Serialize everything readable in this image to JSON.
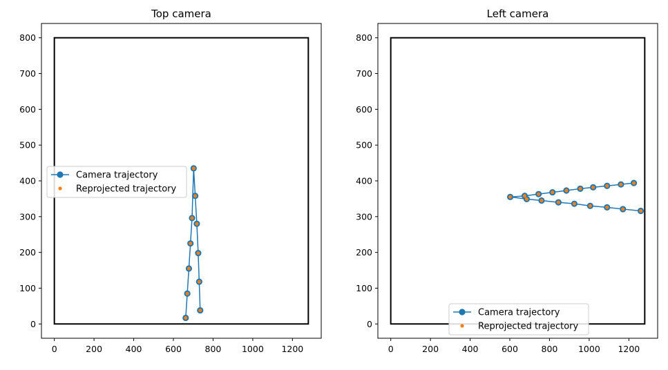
{
  "chart_data": [
    {
      "type": "line",
      "title": "Top camera",
      "xlim": [
        -65,
        1345
      ],
      "ylim": [
        -40,
        840
      ],
      "xticks": [
        "0",
        "200",
        "400",
        "600",
        "800",
        "1000",
        "1200"
      ],
      "xtick_values": [
        0,
        200,
        400,
        600,
        800,
        1000,
        1200
      ],
      "yticks": [
        "0",
        "100",
        "200",
        "300",
        "400",
        "500",
        "600",
        "700",
        "800"
      ],
      "ytick_values": [
        0,
        100,
        200,
        300,
        400,
        500,
        600,
        700,
        800
      ],
      "image_frame": {
        "x": [
          0,
          1280
        ],
        "y": [
          0,
          800
        ]
      },
      "legend_position": "center-left",
      "series": [
        {
          "name": "Camera trajectory",
          "color": "#1f77b4",
          "marker": "circle-with-line",
          "x": [
            662,
            670,
            678,
            686,
            694,
            702,
            710,
            718,
            725,
            730,
            735
          ],
          "y": [
            17,
            85,
            155,
            225,
            296,
            435,
            358,
            280,
            198,
            118,
            38
          ]
        },
        {
          "name": "Reprojected trajectory",
          "color": "#ff7f0e",
          "marker": "dot",
          "x": [
            662,
            670,
            678,
            686,
            694,
            702,
            710,
            718,
            725,
            730,
            735
          ],
          "y": [
            17,
            85,
            155,
            225,
            296,
            435,
            358,
            280,
            198,
            118,
            38
          ]
        }
      ]
    },
    {
      "type": "line",
      "title": "Left camera",
      "xlim": [
        -65,
        1345
      ],
      "ylim": [
        -40,
        840
      ],
      "xticks": [
        "0",
        "200",
        "400",
        "600",
        "800",
        "1000",
        "1200"
      ],
      "xtick_values": [
        0,
        200,
        400,
        600,
        800,
        1000,
        1200
      ],
      "yticks": [
        "0",
        "100",
        "200",
        "300",
        "400",
        "500",
        "600",
        "700",
        "800"
      ],
      "ytick_values": [
        0,
        100,
        200,
        300,
        400,
        500,
        600,
        700,
        800
      ],
      "image_frame": {
        "x": [
          0,
          1280
        ],
        "y": [
          0,
          800
        ]
      },
      "legend_position": "lower-center",
      "series": [
        {
          "name": "Camera trajectory",
          "color": "#1f77b4",
          "marker": "circle-with-line",
          "x": [
            1225,
            1160,
            1090,
            1020,
            955,
            885,
            815,
            745,
            675,
            602,
            685,
            760,
            845,
            925,
            1005,
            1090,
            1170,
            1260
          ],
          "y": [
            394,
            390,
            386,
            382,
            378,
            373,
            368,
            363,
            358,
            355,
            349,
            345,
            340,
            336,
            330,
            326,
            321,
            316
          ]
        },
        {
          "name": "Reprojected trajectory",
          "color": "#ff7f0e",
          "marker": "dot",
          "x": [
            1225,
            1160,
            1090,
            1020,
            955,
            885,
            815,
            745,
            675,
            602,
            685,
            760,
            845,
            925,
            1005,
            1090,
            1170,
            1260
          ],
          "y": [
            394,
            390,
            386,
            382,
            378,
            373,
            368,
            363,
            358,
            355,
            349,
            345,
            340,
            336,
            330,
            326,
            321,
            316
          ]
        }
      ]
    }
  ]
}
